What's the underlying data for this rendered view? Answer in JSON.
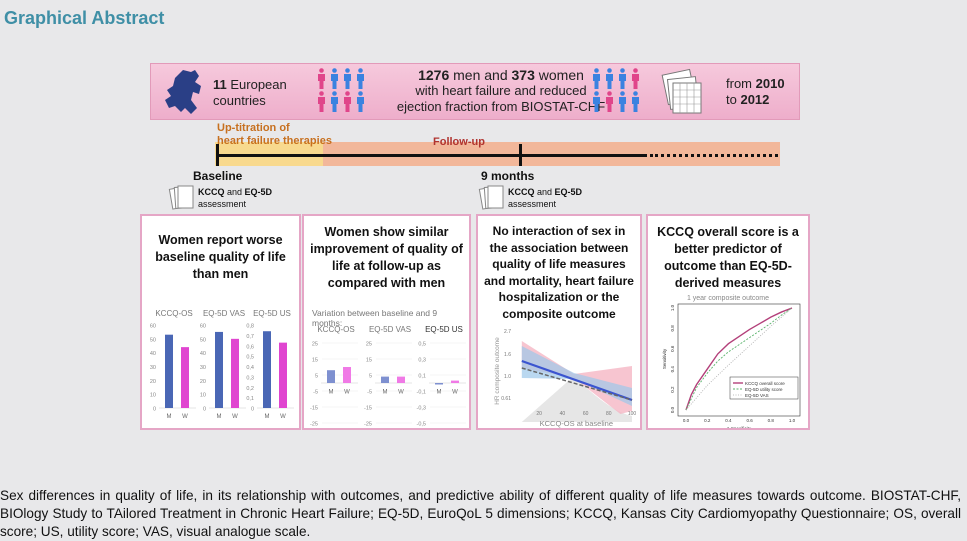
{
  "title": "Graphical Abstract",
  "banner": {
    "countries_num": "11",
    "countries_text": " European countries",
    "men_num": "1276",
    "men_text": " men and ",
    "women_num": "373",
    "women_text": " women",
    "line2": "with heart failure and reduced",
    "line3": "ejection fraction from BIOSTAT-CHF",
    "from": "from ",
    "year_start": "2010",
    "to": "to ",
    "year_end": "2012"
  },
  "timeline": {
    "uptitration_1": "Up-titration of",
    "uptitration_2": "heart failure therapies",
    "followup": "Follow-up",
    "baseline": "Baseline",
    "nine_months": "9 months",
    "assess_bold1": "KCCQ",
    "assess_and": " and ",
    "assess_bold2": "EQ-5D",
    "assess_word": "assessment"
  },
  "panels": [
    {
      "title": "Women report worse baseline quality of life than men"
    },
    {
      "title": "Women show similar improvement of quality of life at follow-up as compared with men",
      "subtitle": "Variation between baseline and 9 months:"
    },
    {
      "title": "No interaction of sex in the association between quality of life measures and mortality, heart failure hospitalization or the composite outcome"
    },
    {
      "title": "KCCQ overall score is a better predictor of outcome than EQ-5D-derived measures"
    }
  ],
  "colors": {
    "men": "#4a67b5",
    "women": "#e045d0",
    "men_light": "#7e90d0",
    "women_light": "#f07ae6",
    "title": "#3f8fa6",
    "panel_border": "#e5a6c6"
  },
  "chart_data": [
    {
      "type": "bar",
      "title": "Baseline",
      "categories": [
        "M",
        "W"
      ],
      "subcharts": [
        {
          "name": "KCCQ-OS",
          "ylim": [
            0,
            60
          ],
          "ticks": [
            "60",
            "50",
            "40",
            "30",
            "20",
            "10",
            "0"
          ],
          "tickvals": [
            60,
            50,
            40,
            30,
            20,
            10,
            0
          ],
          "values": [
            53,
            44
          ]
        },
        {
          "name": "EQ-5D VAS",
          "ylim": [
            0,
            60
          ],
          "ticks": [
            "60",
            "50",
            "40",
            "30",
            "20",
            "10",
            "0"
          ],
          "tickvals": [
            60,
            50,
            40,
            30,
            20,
            10,
            0
          ],
          "values": [
            55,
            50
          ]
        },
        {
          "name": "EQ-5D US",
          "ylim": [
            0,
            0.8
          ],
          "ticks": [
            "0,8",
            "0,7",
            "0,6",
            "0,5",
            "0,4",
            "0,3",
            "0,2",
            "0,1",
            "0"
          ],
          "tickvals": [
            0.8,
            0.7,
            0.6,
            0.5,
            0.4,
            0.3,
            0.2,
            0.1,
            0
          ],
          "values": [
            0.74,
            0.63
          ]
        }
      ]
    },
    {
      "type": "bar",
      "title": "Variation between baseline and 9 months",
      "categories": [
        "M",
        "W"
      ],
      "subcharts": [
        {
          "name": "KCCQ-OS",
          "ylim": [
            -25,
            25
          ],
          "ticks": [
            "25",
            "15",
            "5",
            "-5",
            "-15",
            "-25"
          ],
          "tickvals": [
            25,
            15,
            5,
            -5,
            -15,
            -25
          ],
          "values": [
            8,
            10
          ]
        },
        {
          "name": "EQ-5D VAS",
          "ylim": [
            -25,
            25
          ],
          "ticks": [
            "25",
            "15",
            "5",
            "-5",
            "-15",
            "-25"
          ],
          "tickvals": [
            25,
            15,
            5,
            -5,
            -15,
            -25
          ],
          "values": [
            4,
            4
          ]
        },
        {
          "name": "EQ-5D US",
          "ylim": [
            -0.5,
            0.5
          ],
          "ticks": [
            "0,5",
            "0,3",
            "0,1",
            "-0,1",
            "-0,3",
            "-0,5"
          ],
          "tickvals": [
            0.5,
            0.3,
            0.1,
            -0.1,
            -0.3,
            -0.5
          ],
          "values": [
            0.0,
            0.03
          ]
        }
      ]
    },
    {
      "type": "line",
      "xlabel": "KCCQ-OS at baseline",
      "ylabel": "HR composite outcome",
      "xlim": [
        0,
        100
      ],
      "xticks": [
        "20",
        "40",
        "60",
        "80",
        "100"
      ],
      "yticks": [
        "2.7",
        "1.6",
        "1.0",
        "0.61"
      ],
      "series": [
        {
          "name": "Men",
          "x": [
            5,
            50,
            100
          ],
          "y": [
            1.6,
            1.0,
            0.6
          ]
        },
        {
          "name": "Women",
          "x": [
            5,
            50,
            100
          ],
          "y": [
            1.35,
            1.0,
            0.62
          ]
        }
      ]
    },
    {
      "type": "line",
      "title": "1 year composite outcome",
      "xlabel": "1-Specificity",
      "ylabel": "Sensitivity",
      "xlim": [
        0,
        1
      ],
      "ylim": [
        0,
        1
      ],
      "xticks": [
        "0.0",
        "0.2",
        "0.4",
        "0.6",
        "0.8",
        "1.0"
      ],
      "yticks": [
        "0.0",
        "0.2",
        "0.4",
        "0.6",
        "0.8",
        "1.0"
      ],
      "legend": "bottom-right",
      "series": [
        {
          "name": "KCCQ overall score",
          "x": [
            0,
            0.05,
            0.1,
            0.2,
            0.3,
            0.4,
            0.5,
            0.6,
            0.7,
            0.8,
            0.9,
            1
          ],
          "y": [
            0,
            0.15,
            0.25,
            0.4,
            0.55,
            0.65,
            0.72,
            0.79,
            0.85,
            0.91,
            0.96,
            1
          ]
        },
        {
          "name": "EQ-5D utility score",
          "x": [
            0,
            0.1,
            0.2,
            0.3,
            0.4,
            0.5,
            0.6,
            0.7,
            0.8,
            0.9,
            1
          ],
          "y": [
            0,
            0.22,
            0.36,
            0.48,
            0.57,
            0.64,
            0.71,
            0.78,
            0.85,
            0.93,
            1
          ]
        },
        {
          "name": "EQ-5D VAS",
          "x": [
            0,
            0.2,
            0.4,
            0.6,
            0.8,
            1
          ],
          "y": [
            0,
            0.24,
            0.44,
            0.63,
            0.82,
            1
          ]
        }
      ]
    }
  ],
  "caption": "Sex differences in quality of life, in its relationship with outcomes, and predictive ability of different quality of life measures towards outcome. BIOSTAT-CHF, BIOlogy Study to TAilored Treatment in Chronic Heart Failure; EQ-5D, EuroQoL 5 dimensions; KCCQ, Kansas City Cardiomyopathy Questionnaire; OS, overall score; US, utility score; VAS, visual analogue scale."
}
